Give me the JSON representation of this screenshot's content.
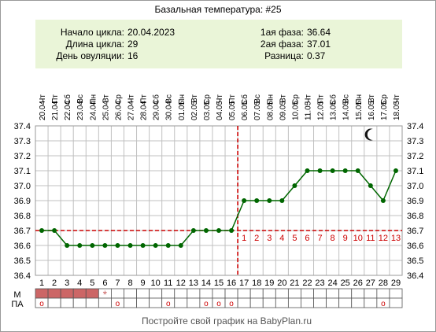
{
  "title": "Базальная температура: #25",
  "info": {
    "left": [
      {
        "label": "Начало цикла:",
        "value": "20.04.2023"
      },
      {
        "label": "Длина цикла:",
        "value": "29"
      },
      {
        "label": "День овуляции:",
        "value": "16"
      }
    ],
    "right": [
      {
        "label": "1ая фаза:",
        "value": "36.64"
      },
      {
        "label": "2ая фаза:",
        "value": "37.01"
      },
      {
        "label": "Разница:",
        "value": "0.37"
      }
    ]
  },
  "footer": "Постройте свой график на BabyPlan.ru",
  "row_labels": {
    "m": "М",
    "pa": "ПА"
  },
  "colors": {
    "line": "#006600",
    "point": "#006600",
    "grid": "#c0c0c0",
    "coverline": "#cc0000",
    "ovulation": "#cc0000",
    "info_bg": "#eaf5d8",
    "menses": "#cc6666",
    "phase_numbers": "#cc0000",
    "pa_marker": "#cc0000"
  },
  "chart_data": {
    "type": "line",
    "x": [
      1,
      2,
      3,
      4,
      5,
      6,
      7,
      8,
      9,
      10,
      11,
      12,
      13,
      14,
      15,
      16,
      17,
      18,
      19,
      20,
      21,
      22,
      23,
      24,
      25,
      26,
      27,
      28,
      29
    ],
    "dates": [
      "20.04",
      "21.04",
      "22.04",
      "23.04",
      "24.04",
      "25.04",
      "26.04",
      "27.04",
      "28.04",
      "29.04",
      "30.04",
      "01.05",
      "02.05",
      "03.05",
      "04.05",
      "05.05",
      "06.05",
      "07.05",
      "08.05",
      "09.05",
      "10.05",
      "11.05",
      "12.05",
      "13.05",
      "14.05",
      "15.05",
      "16.05",
      "17.05",
      "18.05"
    ],
    "weekdays": [
      "Чт",
      "Пт",
      "Сб",
      "Вс",
      "Пн",
      "Вт",
      "Ср",
      "Чт",
      "Пт",
      "Сб",
      "Вс",
      "Пн",
      "Вт",
      "Ср",
      "Чт",
      "Пт",
      "Сб",
      "Вс",
      "Пн",
      "Вт",
      "Ср",
      "Чт",
      "Пт",
      "Сб",
      "Вс",
      "Пн",
      "Вт",
      "Ср",
      "Чт"
    ],
    "series": [
      {
        "values": [
          36.7,
          36.7,
          36.6,
          36.6,
          36.6,
          36.6,
          36.6,
          36.6,
          36.6,
          36.6,
          36.6,
          36.6,
          36.7,
          36.7,
          36.7,
          36.7,
          36.9,
          36.9,
          36.9,
          36.9,
          37.0,
          37.1,
          37.1,
          37.1,
          37.1,
          37.1,
          37.0,
          36.9,
          37.1
        ]
      }
    ],
    "ylim": [
      36.4,
      37.4
    ],
    "yticks": [
      "36.4",
      "36.5",
      "36.6",
      "36.7",
      "36.8",
      "36.9",
      "37.0",
      "37.1",
      "37.2",
      "37.3",
      "37.4"
    ],
    "coverline": 36.7,
    "ovulation_day": 16,
    "phase2_numbers": [
      "1",
      "2",
      "3",
      "4",
      "5",
      "6",
      "7",
      "8",
      "9",
      "10",
      "11",
      "12",
      "13"
    ],
    "menses_days": [
      1,
      2,
      3,
      4,
      5
    ],
    "menses_marker_day": 6,
    "menses_marker": "*",
    "pa_days": [
      1,
      7,
      11,
      14,
      15,
      16,
      28
    ],
    "pa_marker": "o",
    "moon_day": 27,
    "grid": true
  }
}
